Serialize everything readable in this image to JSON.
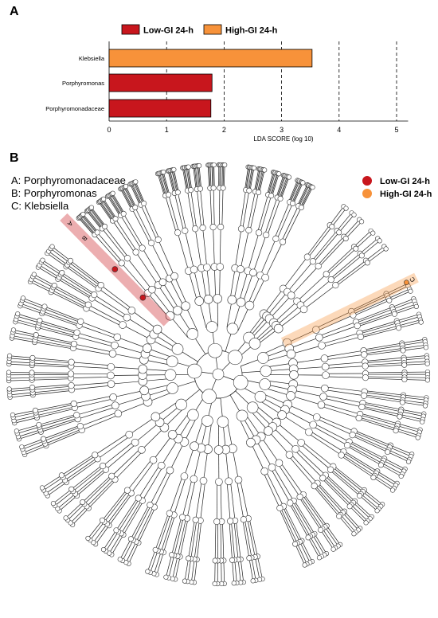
{
  "panel_a": {
    "label": "A"
  },
  "panel_b": {
    "label": "B"
  },
  "colors": {
    "low": "#c8161d",
    "high": "#f7923a",
    "node": "#ffffff"
  },
  "chart_data": [
    {
      "type": "bar",
      "orientation": "horizontal",
      "title": "",
      "xlabel": "LDA SCORE (log 10)",
      "ylabel": "",
      "xlim": [
        0,
        5.2
      ],
      "xticks": [
        0,
        1,
        2,
        3,
        4,
        5
      ],
      "grid": "dashed vertical lines at ticks 1-5",
      "legend_placement": "top",
      "legend": [
        {
          "name": "Low-GI 24-h",
          "color": "#c8161d"
        },
        {
          "name": "High-GI 24-h",
          "color": "#f7923a"
        }
      ],
      "categories": [
        "Klebsiella",
        "Porphyromonas",
        "Porphyromonadaceae"
      ],
      "values": [
        3.53,
        1.79,
        1.77
      ],
      "groups": [
        "High-GI 24-h",
        "Low-GI 24-h",
        "Low-GI 24-h"
      ]
    },
    {
      "type": "cladogram",
      "legend_placement": "top-right",
      "legend": [
        {
          "name": "Low-GI 24-h",
          "color": "#c8161d"
        },
        {
          "name": "High-GI 24-h",
          "color": "#f7923a"
        }
      ],
      "key": [
        {
          "letter": "A",
          "text": "A: Porphyromonadaceae",
          "group": "Low-GI 24-h"
        },
        {
          "letter": "B",
          "text": "B: Porphyromonas",
          "group": "Low-GI 24-h"
        },
        {
          "letter": "C",
          "text": "C: Klebsiella",
          "group": "High-GI 24-h"
        }
      ]
    }
  ]
}
